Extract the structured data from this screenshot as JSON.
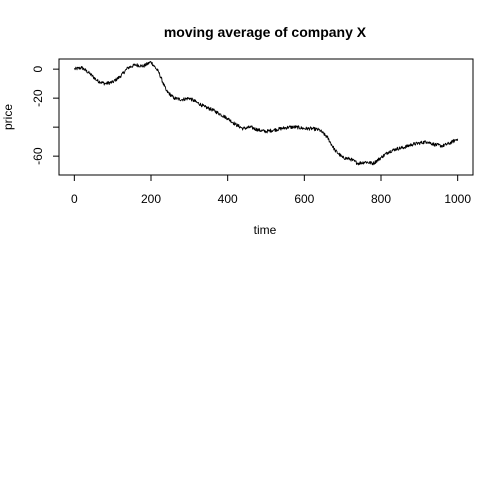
{
  "chart_data": {
    "type": "line",
    "title": "moving average of company X",
    "xlabel": "time",
    "ylabel": "price",
    "xlim": [
      0,
      1000
    ],
    "ylim": [
      -70,
      10
    ],
    "x_ticks": [
      0,
      200,
      400,
      600,
      800,
      1000
    ],
    "x_tick_labels": [
      "0",
      "200",
      "400",
      "600",
      "800",
      "1000"
    ],
    "y_ticks": [
      0,
      -20,
      -60
    ],
    "y_tick_labels": [
      "0",
      "-20",
      "-60"
    ],
    "grid": false,
    "legend": "none",
    "series": [
      {
        "color": "#000000",
        "points": [
          [
            0,
            0
          ],
          [
            20,
            1
          ],
          [
            40,
            -3
          ],
          [
            60,
            -8
          ],
          [
            80,
            -10
          ],
          [
            100,
            -9
          ],
          [
            120,
            -5
          ],
          [
            140,
            1
          ],
          [
            160,
            3
          ],
          [
            180,
            2
          ],
          [
            200,
            5
          ],
          [
            220,
            -2
          ],
          [
            240,
            -15
          ],
          [
            260,
            -20
          ],
          [
            280,
            -21
          ],
          [
            300,
            -20
          ],
          [
            320,
            -23
          ],
          [
            340,
            -26
          ],
          [
            360,
            -28
          ],
          [
            380,
            -31
          ],
          [
            400,
            -34
          ],
          [
            420,
            -38
          ],
          [
            440,
            -41
          ],
          [
            460,
            -40
          ],
          [
            480,
            -42
          ],
          [
            500,
            -43
          ],
          [
            520,
            -42
          ],
          [
            540,
            -41
          ],
          [
            560,
            -40
          ],
          [
            580,
            -40
          ],
          [
            600,
            -41
          ],
          [
            620,
            -41
          ],
          [
            640,
            -42
          ],
          [
            660,
            -47
          ],
          [
            680,
            -56
          ],
          [
            700,
            -61
          ],
          [
            720,
            -62
          ],
          [
            740,
            -65
          ],
          [
            760,
            -64
          ],
          [
            780,
            -65
          ],
          [
            800,
            -61
          ],
          [
            820,
            -57
          ],
          [
            840,
            -55
          ],
          [
            860,
            -54
          ],
          [
            880,
            -52
          ],
          [
            900,
            -51
          ],
          [
            920,
            -50
          ],
          [
            940,
            -52
          ],
          [
            960,
            -53
          ],
          [
            980,
            -51
          ],
          [
            1000,
            -48
          ]
        ]
      }
    ]
  }
}
